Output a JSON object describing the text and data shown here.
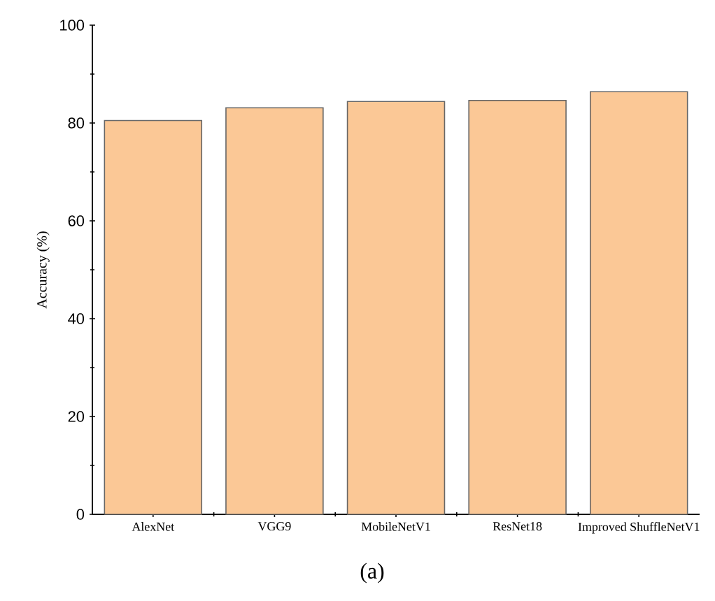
{
  "chart_data": {
    "type": "bar",
    "ylabel": "Accuracy (%)",
    "categories": [
      "AlexNet",
      "VGG9",
      "MobileNetV1",
      "ResNet18",
      "Improved ShuffleNetV1"
    ],
    "values": [
      80.5,
      83.1,
      84.4,
      84.6,
      86.4
    ],
    "color": "#fbc896",
    "ylim": [
      0,
      100
    ],
    "yticks": [
      0,
      20,
      40,
      60,
      80,
      100
    ],
    "annotations": [
      "(a)"
    ]
  }
}
